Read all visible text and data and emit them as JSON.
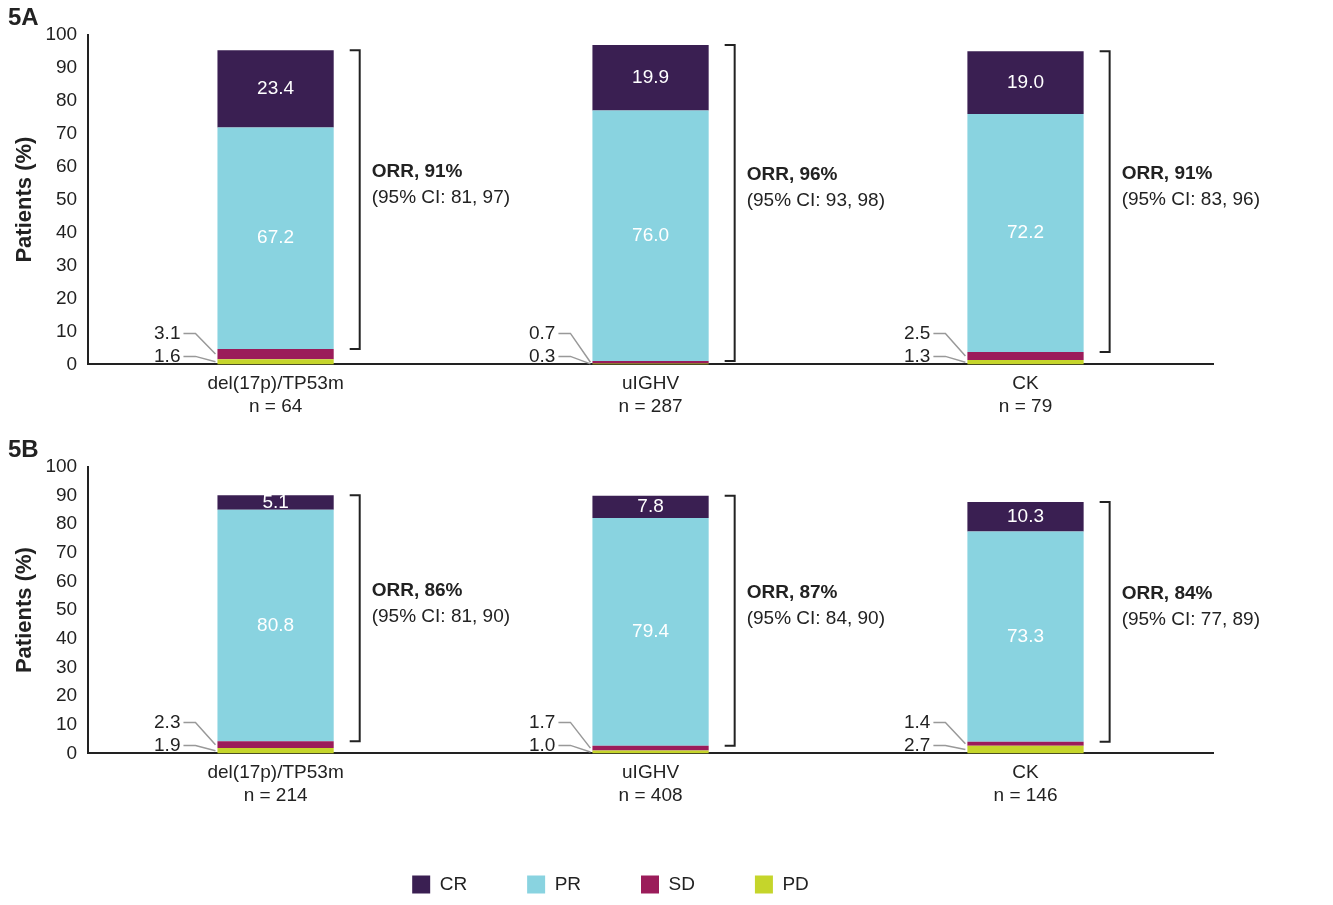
{
  "chart_data": [
    {
      "type": "bar",
      "title": "5A",
      "ylabel": "Patients (%)",
      "stacked": true,
      "legend": false,
      "grid": false,
      "categories": [
        "del(17p)/TP53m\nn = 64",
        "uIGHV\nn = 287",
        "CK\nn = 79"
      ],
      "ylim": [
        0,
        100
      ],
      "yticks": [
        0,
        10,
        20,
        30,
        40,
        50,
        60,
        70,
        80,
        90,
        100
      ],
      "series": [
        {
          "color": "#c5d52b",
          "values": [
            1.6,
            0.3,
            1.3
          ],
          "value_labels": [
            "1.6",
            "0.3",
            "1.3"
          ]
        },
        {
          "color": "#9b1c5a",
          "values": [
            3.1,
            0.7,
            2.5
          ],
          "value_labels": [
            "3.1",
            "0.7",
            "2.5"
          ]
        },
        {
          "color": "#89d3e0",
          "values": [
            67.2,
            76.0,
            72.2
          ],
          "value_labels": [
            "67.2",
            "76.0",
            "72.2"
          ]
        },
        {
          "color": "#3a1f52",
          "values": [
            23.4,
            19.9,
            19.0
          ],
          "value_labels": [
            "23.4",
            "19.9",
            "19.0"
          ]
        }
      ],
      "annotations": [
        "ORR, 91%\n(95% CI: 81, 97)",
        "ORR, 96%\n(95% CI: 93, 98)",
        "ORR, 91%\n(95% CI: 83, 96)"
      ]
    },
    {
      "type": "bar",
      "title": "5B",
      "ylabel": "Patients (%)",
      "stacked": true,
      "legend": "bottom",
      "grid": false,
      "categories": [
        "del(17p)/TP53m\nn = 214",
        "uIGHV\nn = 408",
        "CK\nn = 146"
      ],
      "ylim": [
        0,
        100
      ],
      "yticks": [
        0,
        10,
        20,
        30,
        40,
        50,
        60,
        70,
        80,
        90,
        100
      ],
      "series": [
        {
          "name": "PD",
          "color": "#c5d52b",
          "values": [
            1.9,
            1.0,
            2.7
          ],
          "value_labels": [
            "1.9",
            "1.0",
            "2.7"
          ]
        },
        {
          "name": "SD",
          "color": "#9b1c5a",
          "values": [
            2.3,
            1.7,
            1.4
          ],
          "value_labels": [
            "2.3",
            "1.7",
            "1.4"
          ]
        },
        {
          "name": "PR",
          "color": "#89d3e0",
          "values": [
            80.8,
            79.4,
            73.3
          ],
          "value_labels": [
            "80.8",
            "79.4",
            "73.3"
          ]
        },
        {
          "name": "CR",
          "color": "#3a1f52",
          "values": [
            5.1,
            7.8,
            10.3
          ],
          "value_labels": [
            "5.1",
            "7.8",
            "10.3"
          ]
        }
      ],
      "annotations": [
        "ORR, 86%\n(95% CI: 81, 90)",
        "ORR, 87%\n(95% CI: 84, 90)",
        "ORR, 84%\n(95% CI: 77, 89)"
      ]
    }
  ]
}
